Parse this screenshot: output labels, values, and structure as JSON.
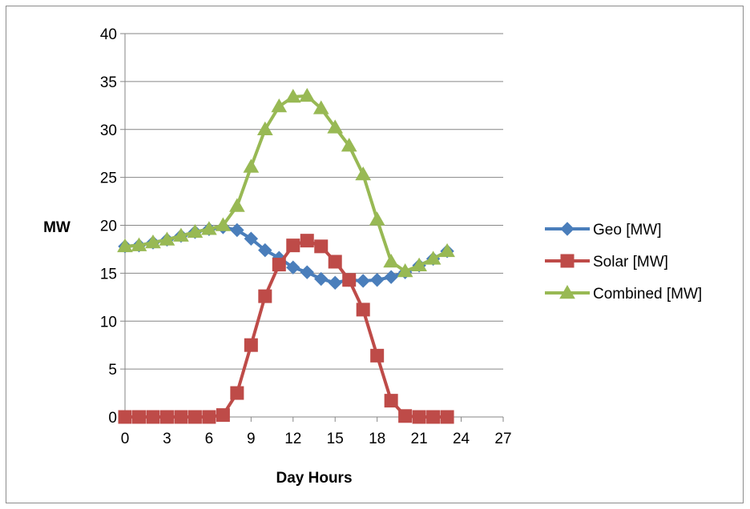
{
  "chart_data": {
    "type": "line",
    "title": "",
    "xlabel": "Day Hours",
    "ylabel": "MW",
    "xlim": [
      0,
      27
    ],
    "ylim": [
      0,
      40
    ],
    "x_ticks": [
      "0",
      "3",
      "6",
      "9",
      "12",
      "15",
      "18",
      "21",
      "24",
      "27"
    ],
    "y_ticks": [
      "0",
      "5",
      "10",
      "15",
      "20",
      "25",
      "30",
      "35",
      "40"
    ],
    "grid": "horizontal",
    "legend_position": "right",
    "x": [
      0,
      1,
      2,
      3,
      4,
      5,
      6,
      7,
      8,
      9,
      10,
      11,
      12,
      13,
      14,
      15,
      16,
      17,
      18,
      19,
      20,
      21,
      22,
      23
    ],
    "series": [
      {
        "name": "Geo [MW]",
        "color": "#4a7ebb",
        "marker": "diamond",
        "values": [
          17.8,
          17.9,
          18.2,
          18.5,
          18.9,
          19.3,
          19.6,
          19.8,
          19.5,
          18.6,
          17.4,
          16.6,
          15.6,
          15.1,
          14.4,
          14.0,
          14.3,
          14.2,
          14.3,
          14.6,
          15.1,
          15.8,
          16.5,
          17.3
        ]
      },
      {
        "name": "Solar [MW]",
        "color": "#be4b48",
        "marker": "square",
        "values": [
          0,
          0,
          0,
          0,
          0,
          0,
          0,
          0.2,
          2.5,
          7.5,
          12.6,
          15.9,
          17.9,
          18.4,
          17.8,
          16.2,
          14.3,
          11.2,
          6.4,
          1.7,
          0.1,
          0,
          0,
          0
        ]
      },
      {
        "name": "Combined [MW]",
        "color": "#98b954",
        "marker": "triangle",
        "values": [
          17.8,
          17.9,
          18.2,
          18.5,
          18.9,
          19.3,
          19.6,
          20.0,
          22.0,
          26.1,
          30.0,
          32.4,
          33.4,
          33.5,
          32.2,
          30.2,
          28.3,
          25.3,
          20.6,
          16.2,
          15.2,
          15.8,
          16.5,
          17.3
        ]
      }
    ]
  }
}
